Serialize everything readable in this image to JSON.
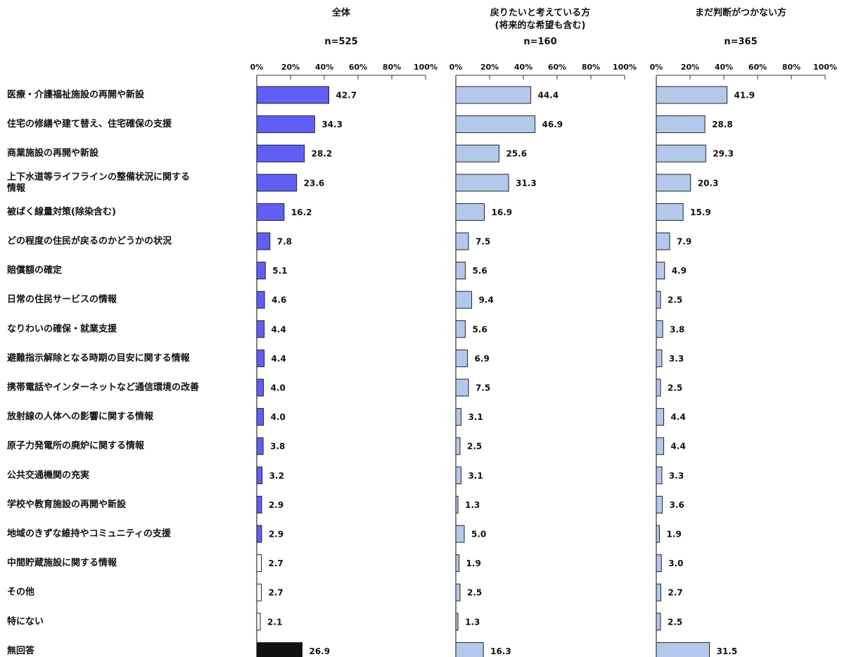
{
  "chart_data": {
    "type": "bar",
    "orientation": "horizontal",
    "categories": [
      "医療・介護福祉施設の再開や新設",
      "住宅の修繕や建て替え、住宅確保の支援",
      "商業施設の再開や新設",
      "上下水道等ライフラインの整備状況に関する情報",
      "被ばく線量対策(除染含む)",
      "どの程度の住民が戻るのかどうかの状況",
      "賠償額の確定",
      "日常の住民サービスの情報",
      "なりわいの確保・就業支援",
      "避難指示解除となる時期の目安に関する情報",
      "携帯電話やインターネットなど通信環境の改善",
      "放射線の人体への影響に関する情報",
      "原子力発電所の廃炉に関する情報",
      "公共交通機関の充実",
      "学校や教育施設の再開や新設",
      "地域のきずな維持やコミュニティの支援",
      "中間貯蔵施設に関する情報",
      "その他",
      "特にない",
      "無回答"
    ],
    "category_lines": [
      [
        "医療・介護福祉施設の再開や新設"
      ],
      [
        "住宅の修繕や建て替え、住宅確保の支援"
      ],
      [
        "商業施設の再開や新設"
      ],
      [
        "上下水道等ライフラインの整備状況に関する",
        "情報"
      ],
      [
        "被ばく線量対策(除染含む)"
      ],
      [
        "どの程度の住民が戻るのかどうかの状況"
      ],
      [
        "賠償額の確定"
      ],
      [
        "日常の住民サービスの情報"
      ],
      [
        "なりわいの確保・就業支援"
      ],
      [
        "避難指示解除となる時期の目安に関する情報"
      ],
      [
        "携帯電話やインターネットなど通信環境の改善"
      ],
      [
        "放射線の人体への影響に関する情報"
      ],
      [
        "原子力発電所の廃炉に関する情報"
      ],
      [
        "公共交通機関の充実"
      ],
      [
        "学校や教育施設の再開や新設"
      ],
      [
        "地域のきずな維持やコミュニティの支援"
      ],
      [
        "中間貯蔵施設に関する情報"
      ],
      [
        "その他"
      ],
      [
        "特にない"
      ],
      [
        "無回答"
      ]
    ],
    "xlim": [
      0,
      100
    ],
    "ticks": [
      "0%",
      "20%",
      "40%",
      "60%",
      "80%",
      "100%"
    ],
    "panels": [
      {
        "title_lines": [
          "全体"
        ],
        "n_label": "n=525",
        "values": [
          42.7,
          34.3,
          28.2,
          23.6,
          16.2,
          7.8,
          5.1,
          4.6,
          4.4,
          4.4,
          4.0,
          4.0,
          3.8,
          3.2,
          2.9,
          2.9,
          2.7,
          2.7,
          2.1,
          26.9
        ],
        "labels": [
          "42.7",
          "34.3",
          "28.2",
          "23.6",
          "16.2",
          "7.8",
          "5.1",
          "4.6",
          "4.4",
          "4.4",
          "4.0",
          "4.0",
          "3.8",
          "3.2",
          "2.9",
          "2.9",
          "2.7",
          "2.7",
          "2.1",
          "26.9"
        ],
        "bar_color": "#5f5ff5",
        "bar_colors_override": {
          "16": "#ffffff",
          "17": "#ffffff",
          "18": "#ffffff",
          "19": "#111111"
        }
      },
      {
        "title_lines": [
          "戻りたいと考えている方",
          "(将来的な希望も含む)"
        ],
        "n_label": "n=160",
        "values": [
          44.4,
          46.9,
          25.6,
          31.3,
          16.9,
          7.5,
          5.6,
          9.4,
          5.6,
          6.9,
          7.5,
          3.1,
          2.5,
          3.1,
          1.3,
          5.0,
          1.9,
          2.5,
          1.3,
          16.3
        ],
        "labels": [
          "44.4",
          "46.9",
          "25.6",
          "31.3",
          "16.9",
          "7.5",
          "5.6",
          "9.4",
          "5.6",
          "6.9",
          "7.5",
          "3.1",
          "2.5",
          "3.1",
          "1.3",
          "5.0",
          "1.9",
          "2.5",
          "1.3",
          "16.3"
        ],
        "bar_color": "#b4c8ec",
        "bar_colors_override": {}
      },
      {
        "title_lines": [
          "まだ判断がつかない方"
        ],
        "n_label": "n=365",
        "values": [
          41.9,
          28.8,
          29.3,
          20.3,
          15.9,
          7.9,
          4.9,
          2.5,
          3.8,
          3.3,
          2.5,
          4.4,
          4.4,
          3.3,
          3.6,
          1.9,
          3.0,
          2.7,
          2.5,
          31.5
        ],
        "labels": [
          "41.9",
          "28.8",
          "29.3",
          "20.3",
          "15.9",
          "7.9",
          "4.9",
          "2.5",
          "3.8",
          "3.3",
          "2.5",
          "4.4",
          "4.4",
          "3.3",
          "3.6",
          "1.9",
          "3.0",
          "2.7",
          "2.5",
          "31.5"
        ],
        "bar_color": "#b4c8ec",
        "bar_colors_override": {}
      }
    ]
  }
}
